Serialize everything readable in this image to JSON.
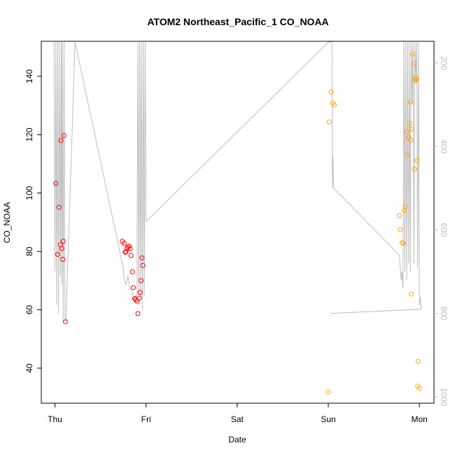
{
  "chart_data": {
    "type": "scatter",
    "title": "ATOM2 Northeast_Pacific_1 CO_NOAA",
    "xlabel": "Date",
    "ylabel": "CO_NOAA",
    "y2label": "",
    "x_ticks": [
      "Thu",
      "Fri",
      "Sat",
      "Sun",
      "Mon"
    ],
    "x_tick_values": [
      0,
      1,
      2,
      3,
      4
    ],
    "xlim": [
      -0.15,
      4.16
    ],
    "ylim": [
      28,
      152
    ],
    "y_ticks": [
      40,
      60,
      80,
      100,
      120,
      140
    ],
    "y2_axis_reversed": true,
    "y2lim": [
      1015,
      148
    ],
    "y2_ticks": [
      200,
      400,
      600,
      800,
      1000
    ],
    "grid": false,
    "legend": "none",
    "colors": {
      "series_red": "#ff0000",
      "series_orange": "#ffa500",
      "pressure_line": "#bebebe",
      "axis": "#000000",
      "right_axis": "#bebebe"
    },
    "series": [
      {
        "color": "red",
        "x": [
          0.01,
          0.03,
          0.045,
          0.06,
          0.065,
          0.075,
          0.085,
          0.09,
          0.1,
          0.115,
          0.74,
          0.76,
          0.77,
          0.78,
          0.79,
          0.8,
          0.815,
          0.825,
          0.835,
          0.85,
          0.86,
          0.875,
          0.885,
          0.9,
          0.91,
          0.925,
          0.935,
          0.945,
          0.955,
          0.965
        ],
        "y": [
          103.3,
          79,
          95.1,
          82.3,
          118,
          81,
          77.3,
          83.5,
          119.7,
          55.9,
          83.5,
          82.8,
          79.7,
          79.9,
          81,
          81.5,
          81.8,
          81,
          78.6,
          73,
          67.6,
          63.9,
          63.5,
          63,
          58.7,
          64,
          66,
          70,
          77.8,
          75.2
        ]
      },
      {
        "color": "orange",
        "x": [
          3.01,
          3.03,
          3.05,
          3.065,
          3.78,
          3.79,
          3.81,
          3.825,
          3.835,
          3.845,
          3.86,
          3.87,
          3.88,
          3.89,
          3.9,
          3.905,
          3.91,
          3.915,
          3.925,
          3.94,
          3.945,
          3.955,
          3.96,
          3.965,
          3.975,
          3.98,
          3.985,
          4.0
        ],
        "y": [
          124.4,
          134.6,
          130.8,
          130.1,
          92.3,
          87.5,
          83,
          82.8,
          94,
          95.5,
          121,
          113,
          119.1,
          124,
          131.2,
          118.2,
          65.4,
          122,
          147.6,
          144.4,
          108.2,
          139.4,
          138.6,
          139.2,
          111.2,
          33.8,
          42.3,
          33.1
        ]
      },
      {
        "color": "orange",
        "x": [
          3.0
        ],
        "y": [
          31.8
        ]
      }
    ],
    "pressure_line": {
      "color": "grey",
      "axis": "right",
      "x": [
        -0.01,
        0.0,
        0.01,
        0.02,
        0.03,
        0.04,
        0.05,
        0.06,
        0.07,
        0.075,
        0.08,
        0.09,
        0.1,
        0.11,
        0.12,
        0.22,
        0.75,
        0.76,
        0.78,
        0.8,
        0.82,
        0.84,
        0.86,
        0.88,
        0.9,
        0.91,
        0.92,
        0.93,
        0.94,
        0.95,
        0.96,
        0.97,
        0.98,
        0.99,
        1.0,
        3.0,
        3.02,
        3.03,
        3.04,
        3.045,
        3.05,
        3.06,
        3.78,
        3.8,
        3.81,
        3.82,
        3.83,
        3.84,
        3.85,
        3.86,
        3.87,
        3.88,
        3.89,
        3.9,
        3.91,
        3.92,
        3.93,
        3.94,
        3.95,
        3.96,
        3.97,
        3.98,
        3.99,
        4.0,
        4.01,
        4.02,
        3.02,
        4.0
      ],
      "y": [
        150,
        700,
        150,
        780,
        150,
        800,
        150,
        710,
        150,
        730,
        150,
        820,
        150,
        810,
        820,
        150,
        690,
        720,
        730,
        710,
        740,
        745,
        760,
        770,
        750,
        150,
        780,
        150,
        760,
        150,
        790,
        150,
        760,
        150,
        580,
        150,
        150,
        140,
        120,
        500,
        420,
        500,
        660,
        720,
        700,
        740,
        150,
        700,
        150,
        720,
        150,
        680,
        150,
        700,
        150,
        300,
        150,
        680,
        150,
        250,
        150,
        690,
        150,
        780,
        760,
        790,
        800,
        790
      ]
    }
  }
}
